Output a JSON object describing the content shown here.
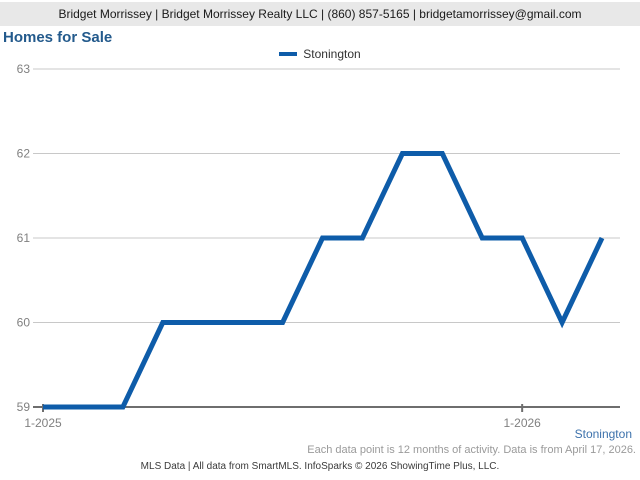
{
  "header": {
    "text": "Bridget Morrissey | Bridget Morrissey Realty LLC | (860) 857-5165 | bridgetamorrissey@gmail.com"
  },
  "title": "Homes for Sale",
  "legend": {
    "label": "Stonington"
  },
  "footer": {
    "series_label": "Stonington",
    "note": "Each data point is 12 months of activity. Data is from April 17, 2026.",
    "attribution": "MLS Data | All data from SmartMLS. InfoSparks © 2026 ShowingTime Plus, LLC."
  },
  "colors": {
    "line": "#0e5ca9",
    "title": "#235a8c",
    "header_background": "#e8e8e8",
    "gridline": "#c8c8c8",
    "axis": "#6e6e6e",
    "axis_text": "#808080",
    "footer_series": "#3d72ac"
  },
  "chart_data": {
    "type": "line",
    "title": "Homes for Sale",
    "legend_position": "top-center",
    "grid": "horizontal",
    "x": [
      "1-2025",
      "2-2025",
      "3-2025",
      "4-2025",
      "5-2025",
      "6-2025",
      "7-2025",
      "8-2025",
      "9-2025",
      "10-2025",
      "11-2025",
      "12-2025",
      "1-2026",
      "2-2026",
      "3-2026"
    ],
    "series": [
      {
        "name": "Stonington",
        "values": [
          59,
          59,
          59,
          60,
          60,
          60,
          60,
          61,
          61,
          62,
          62,
          61,
          61,
          60,
          61
        ]
      }
    ],
    "ylim": [
      59,
      63
    ],
    "yticks": [
      59,
      60,
      61,
      62,
      63
    ],
    "x_ticks": [
      {
        "index": 0,
        "label": "1-2025"
      },
      {
        "index": 12,
        "label": "1-2026"
      }
    ],
    "xlabel": "",
    "ylabel": ""
  }
}
